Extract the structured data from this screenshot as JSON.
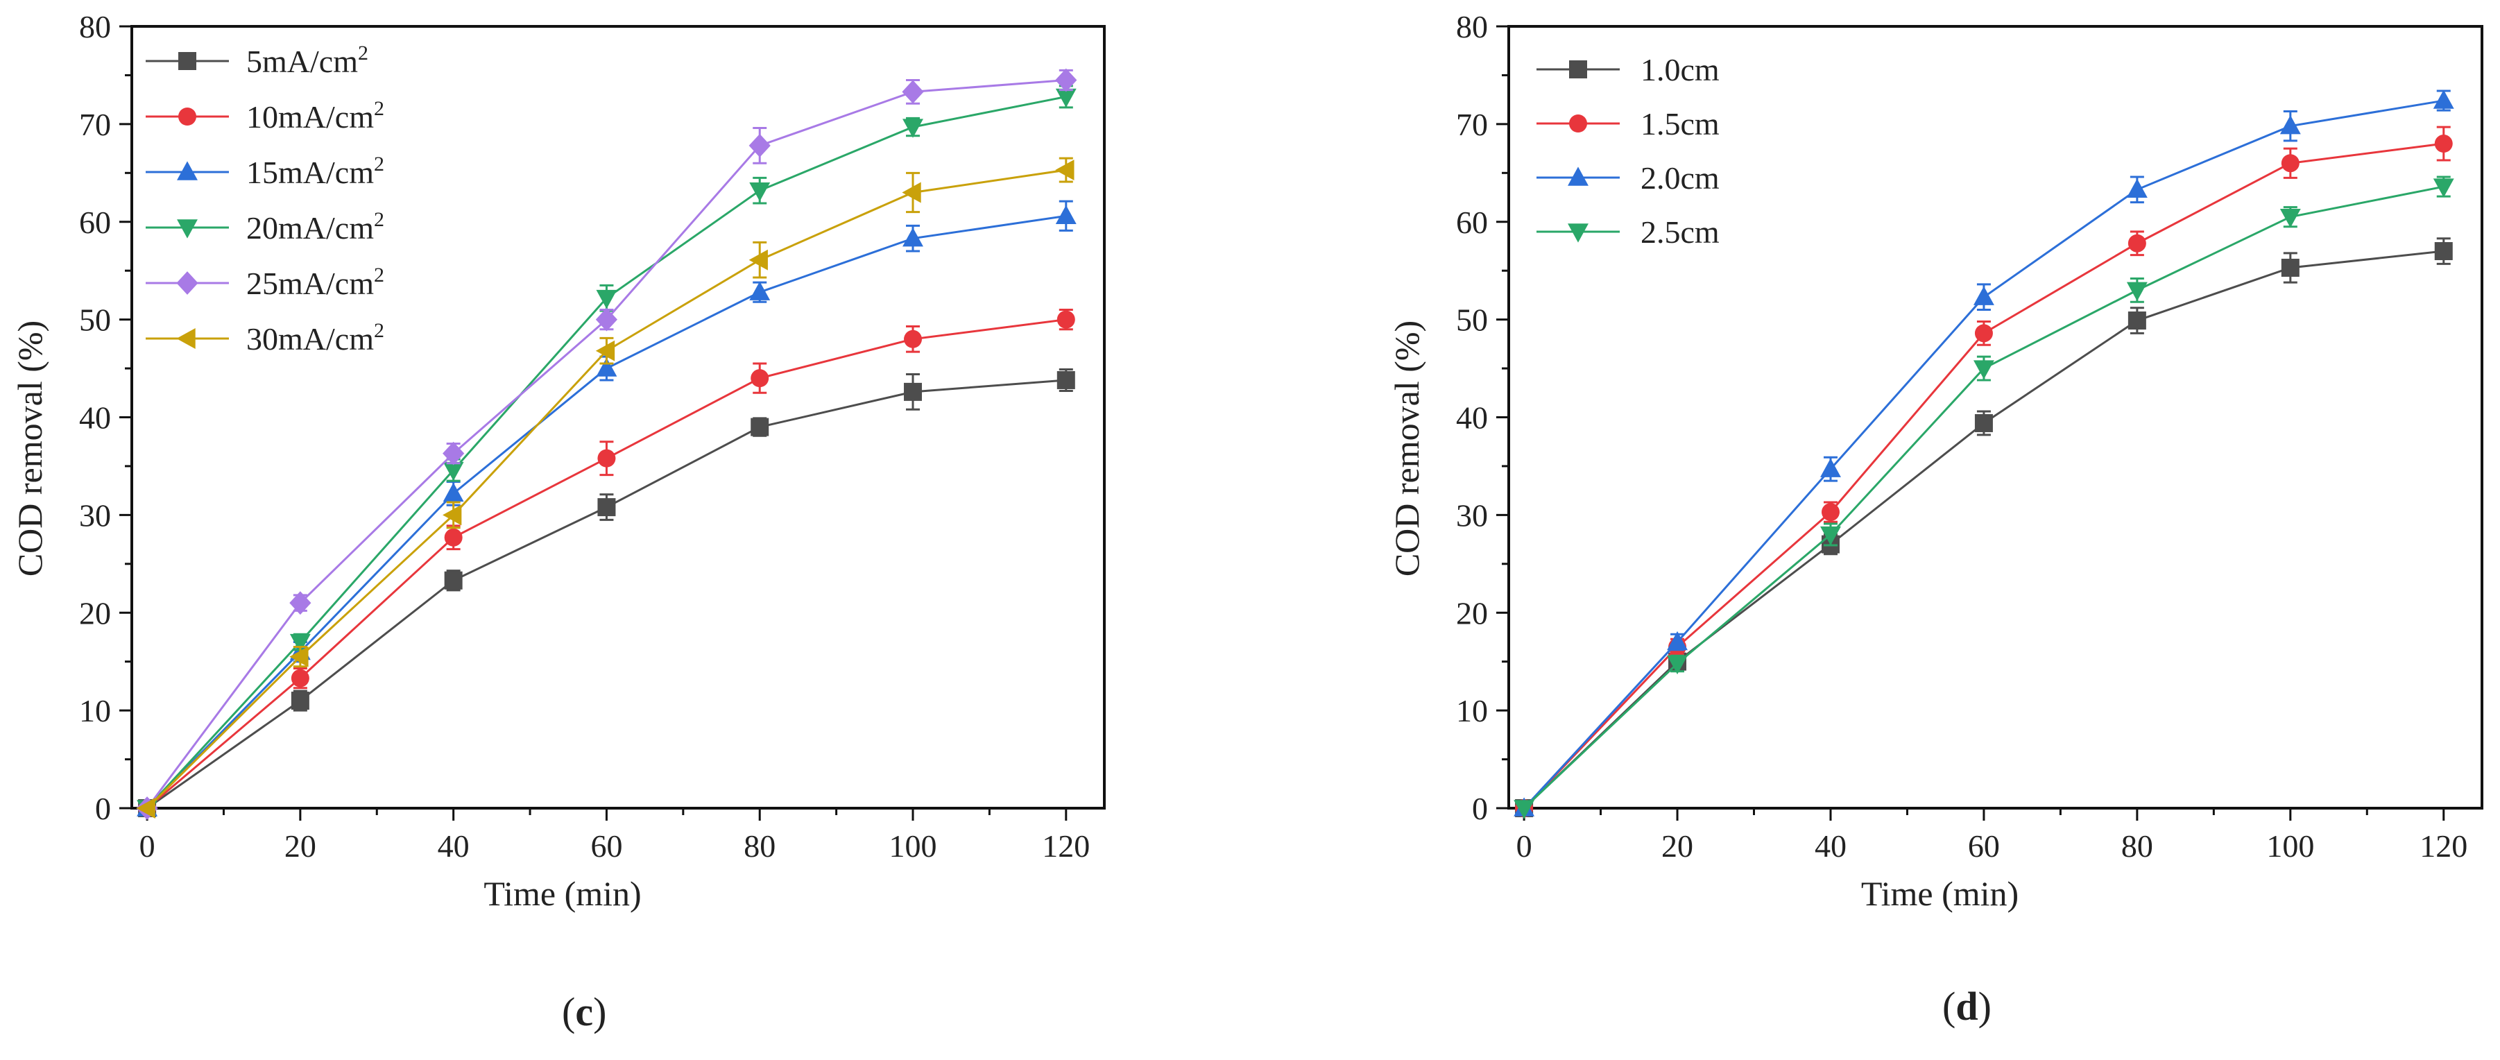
{
  "chart_data": [
    {
      "type": "line",
      "panel_label": {
        "open": "(",
        "letter": "c",
        "close": ")"
      },
      "xlabel": "Time (min)",
      "ylabel": "COD removal (%)",
      "xlim": [
        -2,
        125
      ],
      "ylim": [
        0,
        80
      ],
      "xticks": [
        0,
        20,
        40,
        60,
        80,
        100,
        120
      ],
      "yticks": [
        0,
        10,
        20,
        30,
        40,
        50,
        60,
        70,
        80
      ],
      "x": [
        0,
        20,
        40,
        60,
        80,
        100,
        120
      ],
      "legend_position": "top-left",
      "series": [
        {
          "name": "5mA/cm",
          "sup": "2",
          "color": "#4d4d4d",
          "marker": "square",
          "values": [
            0,
            11,
            23.3,
            30.8,
            39,
            42.6,
            43.8
          ],
          "errors": [
            0,
            1.0,
            1.0,
            1.3,
            0.9,
            1.8,
            1.1
          ]
        },
        {
          "name": "10mA/cm",
          "sup": "2",
          "color": "#e8363c",
          "marker": "circle",
          "values": [
            0,
            13.3,
            27.7,
            35.8,
            44,
            48,
            50
          ],
          "errors": [
            0,
            1.0,
            1.2,
            1.7,
            1.5,
            1.3,
            1.0
          ]
        },
        {
          "name": "15mA/cm",
          "sup": "2",
          "color": "#2c6fd8",
          "marker": "triangle-up",
          "values": [
            0,
            16,
            32.2,
            45,
            52.8,
            58.3,
            60.6
          ],
          "errors": [
            0,
            1.0,
            1.2,
            1.2,
            1.0,
            1.3,
            1.5
          ]
        },
        {
          "name": "20mA/cm",
          "sup": "2",
          "color": "#2aa768",
          "marker": "triangle-down",
          "values": [
            0,
            17,
            34.6,
            52.2,
            63.2,
            69.7,
            72.8
          ],
          "errors": [
            0,
            0.8,
            1.1,
            1.3,
            1.3,
            0.9,
            1.1
          ]
        },
        {
          "name": "25mA/cm",
          "sup": "2",
          "color": "#a87ae6",
          "marker": "diamond",
          "values": [
            0,
            21,
            36.3,
            50,
            67.8,
            73.3,
            74.5
          ],
          "errors": [
            0,
            0.8,
            1.0,
            1.0,
            1.8,
            1.2,
            1.0
          ]
        },
        {
          "name": "30mA/cm",
          "sup": "2",
          "color": "#c9a10a",
          "marker": "triangle-left",
          "values": [
            0,
            15.5,
            30,
            46.8,
            56.1,
            63,
            65.3
          ],
          "errors": [
            0,
            1.0,
            1.3,
            1.3,
            1.8,
            2.0,
            1.2
          ]
        }
      ]
    },
    {
      "type": "line",
      "panel_label": {
        "open": "(",
        "letter": "d",
        "close": ")"
      },
      "xlabel": "Time (min)",
      "ylabel": "COD removal (%)",
      "xlim": [
        -2,
        125
      ],
      "ylim": [
        0,
        80
      ],
      "xticks": [
        0,
        20,
        40,
        60,
        80,
        100,
        120
      ],
      "yticks": [
        0,
        10,
        20,
        30,
        40,
        50,
        60,
        70,
        80
      ],
      "x": [
        0,
        20,
        40,
        60,
        80,
        100,
        120
      ],
      "legend_position": "top-left",
      "series": [
        {
          "name": "1.0cm",
          "sup": "",
          "color": "#4d4d4d",
          "marker": "square",
          "values": [
            0,
            15,
            27,
            39.4,
            49.9,
            55.3,
            57
          ],
          "errors": [
            0,
            0.7,
            1.0,
            1.2,
            1.3,
            1.5,
            1.3
          ]
        },
        {
          "name": "1.5cm",
          "sup": "",
          "color": "#e8363c",
          "marker": "circle",
          "values": [
            0,
            16.5,
            30.3,
            48.6,
            57.8,
            66,
            68
          ],
          "errors": [
            0,
            0.8,
            1.0,
            1.2,
            1.2,
            1.5,
            1.7
          ]
        },
        {
          "name": "2.0cm",
          "sup": "",
          "color": "#2c6fd8",
          "marker": "triangle-up",
          "values": [
            0,
            17,
            34.7,
            52.3,
            63.3,
            69.8,
            72.4
          ],
          "errors": [
            0,
            0.8,
            1.2,
            1.3,
            1.3,
            1.5,
            1.0
          ]
        },
        {
          "name": "2.5cm",
          "sup": "",
          "color": "#2aa768",
          "marker": "triangle-down",
          "values": [
            0,
            14.8,
            28,
            45,
            53,
            60.5,
            63.6
          ],
          "errors": [
            0,
            0.8,
            1.1,
            1.2,
            1.2,
            1.0,
            1.0
          ]
        }
      ]
    }
  ]
}
